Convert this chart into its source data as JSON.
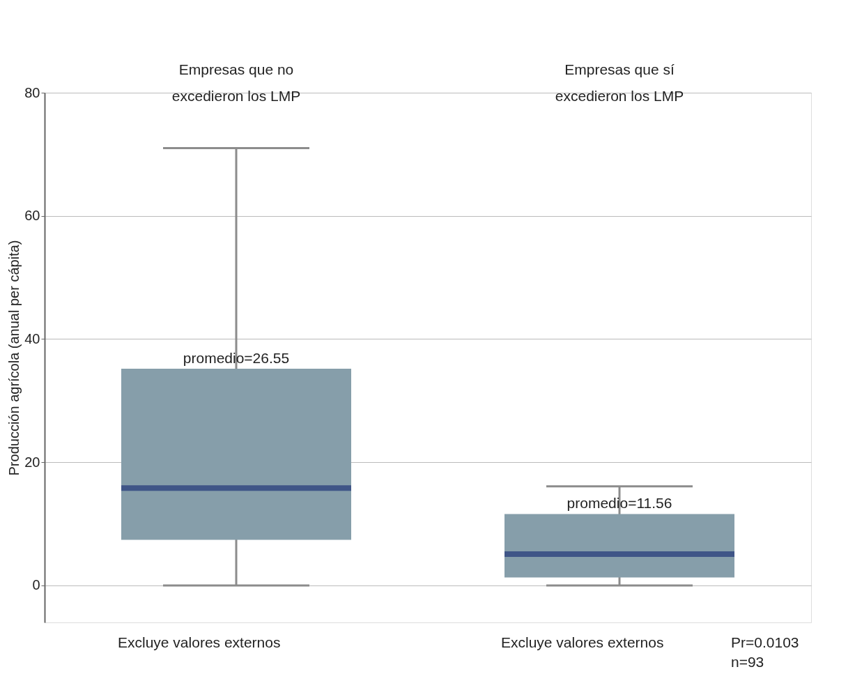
{
  "chart_data": {
    "type": "box",
    "categories": [
      "Empresas que no excedieron los LMP",
      "Empresas que sí excedieron los LMP"
    ],
    "ylabel": "Producción agrícola (anual per cápita)",
    "boxes": [
      {
        "low": 0,
        "q1": 7.4,
        "median": 15.8,
        "q3": 35.2,
        "high": 71
      },
      {
        "low": 0,
        "q1": 1.3,
        "median": 5.1,
        "q3": 11.6,
        "high": 16.1
      }
    ],
    "color": "#869eaa",
    "ylim": [
      -6,
      80
    ],
    "yticks": [
      0,
      20,
      40,
      60,
      80
    ],
    "grid": "y",
    "annotations": [
      "promedio=26.55",
      "promedio=11.56",
      "Excluye valores externos",
      "Excluye valores externos",
      "Pr=0.0103",
      "n=93"
    ]
  }
}
